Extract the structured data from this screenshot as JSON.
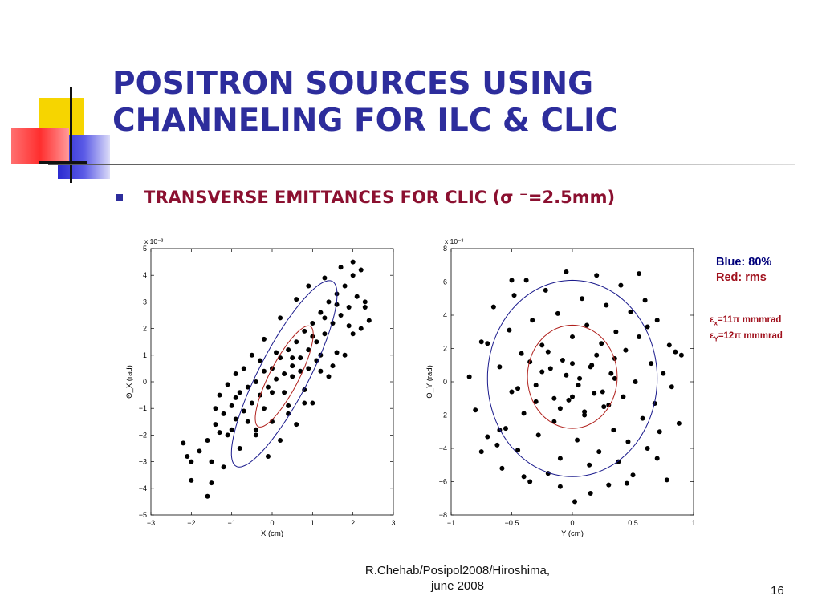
{
  "slide": {
    "title_line1": "POSITRON SOURCES USING",
    "title_line2": "CHANNELING FOR ILC & CLIC",
    "bullet": "TRANSVERSE EMITTANCES FOR CLIC (σ ⁻=2.5mm)",
    "legend_blue": "Blue: 80%",
    "legend_red": "Red: rms",
    "emit_x_label": "x",
    "emit_x_value": "=11π mmmrad",
    "emit_y_label": "Y",
    "emit_y_value": "=12π mmmrad",
    "footer_line1": "R.Chehab/Posipol2008/Hiroshima,",
    "footer_line2": "june 2008",
    "page_number": "16",
    "colors": {
      "title": "#2d2d9c",
      "bullet_text": "#8b1030",
      "ellipse_80": "#1a1a8c",
      "ellipse_rms": "#b0201c"
    }
  },
  "chart_data": [
    {
      "type": "scatter",
      "xlabel": "X  (cm)",
      "ylabel": "Θ_X  (rad)",
      "y_multiplier": "x 10⁻³",
      "xlim": [
        -3,
        3
      ],
      "ylim": [
        -5,
        5
      ],
      "xticks": [
        -3,
        -2,
        -1,
        0,
        1,
        2,
        3
      ],
      "yticks": [
        -5,
        -4,
        -3,
        -2,
        -1,
        0,
        1,
        2,
        3,
        4,
        5
      ],
      "ellipses": [
        {
          "name": "Blue: 80%",
          "color": "#1a1a8c",
          "cx": 0.3,
          "cy": 0.3,
          "a": 2.4,
          "b": 0.6,
          "angle_deg": 60
        },
        {
          "name": "Red: rms",
          "color": "#b0201c",
          "cx": 0.3,
          "cy": 0.2,
          "a": 1.3,
          "b": 0.35,
          "angle_deg": 60
        }
      ],
      "points": [
        [
          -2.2,
          -2.3
        ],
        [
          -2.1,
          -2.8
        ],
        [
          -2.0,
          -3.0
        ],
        [
          -1.8,
          -2.6
        ],
        [
          -1.6,
          -2.2
        ],
        [
          -1.5,
          -3.0
        ],
        [
          -1.4,
          -1.6
        ],
        [
          -1.3,
          -1.9
        ],
        [
          -1.2,
          -1.2
        ],
        [
          -1.1,
          -2.0
        ],
        [
          -1.0,
          -0.9
        ],
        [
          -0.9,
          -1.4
        ],
        [
          -0.8,
          -0.4
        ],
        [
          -0.7,
          -1.1
        ],
        [
          -0.6,
          -0.2
        ],
        [
          -0.5,
          -0.8
        ],
        [
          -0.4,
          0.0
        ],
        [
          -0.3,
          -0.5
        ],
        [
          -0.2,
          0.4
        ],
        [
          -0.1,
          -0.2
        ],
        [
          0.0,
          0.5
        ],
        [
          0.1,
          0.1
        ],
        [
          0.2,
          0.9
        ],
        [
          0.3,
          0.3
        ],
        [
          0.4,
          1.2
        ],
        [
          0.5,
          0.6
        ],
        [
          0.6,
          1.5
        ],
        [
          0.7,
          0.9
        ],
        [
          0.8,
          1.9
        ],
        [
          0.9,
          1.2
        ],
        [
          1.0,
          2.2
        ],
        [
          1.1,
          1.5
        ],
        [
          1.2,
          2.6
        ],
        [
          1.3,
          1.8
        ],
        [
          1.4,
          3.0
        ],
        [
          1.5,
          2.2
        ],
        [
          1.6,
          3.3
        ],
        [
          1.7,
          2.5
        ],
        [
          1.8,
          3.6
        ],
        [
          1.9,
          2.8
        ],
        [
          2.0,
          4.0
        ],
        [
          2.1,
          3.2
        ],
        [
          2.2,
          4.2
        ],
        [
          2.3,
          3.0
        ],
        [
          2.4,
          2.3
        ],
        [
          2.0,
          1.8
        ],
        [
          1.6,
          1.1
        ],
        [
          1.2,
          0.4
        ],
        [
          0.8,
          -0.3
        ],
        [
          0.4,
          -0.9
        ],
        [
          0.0,
          -1.5
        ],
        [
          -0.4,
          -2.0
        ],
        [
          -0.8,
          -2.5
        ],
        [
          -1.2,
          -3.2
        ],
        [
          -1.5,
          -3.8
        ],
        [
          -1.6,
          -4.3
        ],
        [
          -2.0,
          -3.7
        ],
        [
          0.2,
          -2.2
        ],
        [
          -0.1,
          -2.8
        ],
        [
          0.6,
          -1.6
        ],
        [
          1.0,
          -0.8
        ],
        [
          1.4,
          0.2
        ],
        [
          1.8,
          1.0
        ],
        [
          2.2,
          2.0
        ],
        [
          -0.5,
          1.0
        ],
        [
          -0.9,
          0.3
        ],
        [
          -1.3,
          -0.5
        ],
        [
          -0.2,
          1.6
        ],
        [
          0.2,
          2.4
        ],
        [
          0.6,
          3.1
        ],
        [
          0.9,
          3.6
        ],
        [
          1.3,
          3.9
        ],
        [
          1.7,
          4.3
        ],
        [
          2.0,
          4.5
        ],
        [
          -0.3,
          0.8
        ],
        [
          0.1,
          1.1
        ],
        [
          0.5,
          0.2
        ],
        [
          0.9,
          0.5
        ],
        [
          1.2,
          1.0
        ],
        [
          -0.6,
          -1.5
        ],
        [
          -1.0,
          -1.8
        ],
        [
          0.3,
          -0.4
        ],
        [
          0.7,
          0.4
        ],
        [
          1.1,
          0.8
        ],
        [
          -0.2,
          -1.0
        ],
        [
          0.4,
          -1.2
        ],
        [
          0.8,
          -0.8
        ],
        [
          1.5,
          0.6
        ],
        [
          1.9,
          2.1
        ],
        [
          2.3,
          2.8
        ],
        [
          -0.7,
          0.5
        ],
        [
          -1.1,
          -0.1
        ],
        [
          -1.4,
          -1.0
        ],
        [
          0.0,
          -0.4
        ],
        [
          0.5,
          0.9
        ],
        [
          1.0,
          1.7
        ],
        [
          1.3,
          2.4
        ],
        [
          1.6,
          2.9
        ],
        [
          -0.9,
          -0.6
        ],
        [
          -0.4,
          -1.8
        ]
      ]
    },
    {
      "type": "scatter",
      "xlabel": "Y  (cm)",
      "ylabel": "Θ_Y  (rad)",
      "y_multiplier": "x 10⁻³",
      "xlim": [
        -1,
        1
      ],
      "ylim": [
        -8,
        8
      ],
      "xticks": [
        -1,
        -0.5,
        0,
        0.5,
        1
      ],
      "yticks": [
        -8,
        -6,
        -4,
        -2,
        0,
        2,
        4,
        6,
        8
      ],
      "ellipses": [
        {
          "name": "Blue: 80%",
          "color": "#1a1a8c",
          "cx": 0.0,
          "cy": 0.2,
          "a": 0.7,
          "b": 5.9,
          "angle_deg": 0
        },
        {
          "name": "Red: rms",
          "color": "#b0201c",
          "cx": 0.0,
          "cy": 0.3,
          "a": 0.37,
          "b": 3.1,
          "angle_deg": 0
        }
      ],
      "points": [
        [
          -0.85,
          0.3
        ],
        [
          -0.8,
          -1.7
        ],
        [
          -0.75,
          2.4
        ],
        [
          -0.7,
          -3.3
        ],
        [
          -0.65,
          4.5
        ],
        [
          -0.6,
          0.9
        ],
        [
          -0.58,
          -5.2
        ],
        [
          -0.55,
          -2.8
        ],
        [
          -0.52,
          3.1
        ],
        [
          -0.5,
          -0.6
        ],
        [
          -0.48,
          5.2
        ],
        [
          -0.45,
          -4.1
        ],
        [
          -0.42,
          1.7
        ],
        [
          -0.4,
          -1.9
        ],
        [
          -0.38,
          6.1
        ],
        [
          -0.35,
          -6.0
        ],
        [
          -0.33,
          3.7
        ],
        [
          -0.3,
          -0.2
        ],
        [
          -0.28,
          -3.2
        ],
        [
          -0.25,
          2.2
        ],
        [
          -0.22,
          5.5
        ],
        [
          -0.2,
          -5.5
        ],
        [
          -0.18,
          0.8
        ],
        [
          -0.15,
          -2.4
        ],
        [
          -0.12,
          4.1
        ],
        [
          -0.1,
          -4.6
        ],
        [
          -0.08,
          1.3
        ],
        [
          -0.05,
          6.6
        ],
        [
          -0.03,
          -1.1
        ],
        [
          0.0,
          2.7
        ],
        [
          0.02,
          -7.2
        ],
        [
          0.04,
          -3.5
        ],
        [
          0.06,
          0.2
        ],
        [
          0.08,
          5.0
        ],
        [
          0.1,
          -2.0
        ],
        [
          0.12,
          3.4
        ],
        [
          0.14,
          -5.0
        ],
        [
          0.16,
          1.0
        ],
        [
          0.18,
          -0.7
        ],
        [
          0.2,
          6.4
        ],
        [
          0.22,
          -4.2
        ],
        [
          0.24,
          2.3
        ],
        [
          0.26,
          -1.5
        ],
        [
          0.28,
          4.6
        ],
        [
          0.3,
          -6.2
        ],
        [
          0.32,
          0.5
        ],
        [
          0.34,
          -2.9
        ],
        [
          0.36,
          3.0
        ],
        [
          0.38,
          -4.8
        ],
        [
          0.4,
          5.8
        ],
        [
          0.42,
          -0.9
        ],
        [
          0.44,
          1.9
        ],
        [
          0.46,
          -3.6
        ],
        [
          0.48,
          4.2
        ],
        [
          0.5,
          -5.6
        ],
        [
          0.52,
          0.0
        ],
        [
          0.55,
          2.7
        ],
        [
          0.58,
          -2.2
        ],
        [
          0.6,
          4.9
        ],
        [
          0.62,
          -4.0
        ],
        [
          0.65,
          1.1
        ],
        [
          0.68,
          -1.3
        ],
        [
          0.7,
          3.7
        ],
        [
          0.72,
          -3.0
        ],
        [
          0.75,
          0.5
        ],
        [
          0.78,
          -5.9
        ],
        [
          0.8,
          2.2
        ],
        [
          0.82,
          -0.3
        ],
        [
          0.85,
          1.8
        ],
        [
          0.88,
          -2.5
        ],
        [
          0.9,
          1.6
        ],
        [
          -0.7,
          2.3
        ],
        [
          -0.6,
          -2.9
        ],
        [
          -0.45,
          -0.4
        ],
        [
          -0.25,
          0.6
        ],
        [
          -0.15,
          -1.0
        ],
        [
          -0.05,
          0.4
        ],
        [
          0.05,
          -0.2
        ],
        [
          0.15,
          0.9
        ],
        [
          0.25,
          -0.6
        ],
        [
          0.35,
          0.2
        ],
        [
          -0.2,
          1.8
        ],
        [
          0.2,
          1.6
        ],
        [
          -0.1,
          -1.6
        ],
        [
          0.1,
          -1.8
        ],
        [
          0.3,
          -1.4
        ],
        [
          -0.3,
          -1.2
        ],
        [
          -0.35,
          1.2
        ],
        [
          0.35,
          1.4
        ],
        [
          0.0,
          1.1
        ],
        [
          0.0,
          -0.9
        ],
        [
          -0.62,
          -3.8
        ],
        [
          0.62,
          3.3
        ],
        [
          -0.5,
          6.1
        ],
        [
          0.55,
          6.5
        ],
        [
          0.15,
          -6.7
        ],
        [
          -0.1,
          -6.3
        ],
        [
          -0.4,
          -5.7
        ],
        [
          0.45,
          -6.1
        ],
        [
          0.7,
          -4.6
        ],
        [
          -0.75,
          -4.2
        ]
      ]
    }
  ]
}
